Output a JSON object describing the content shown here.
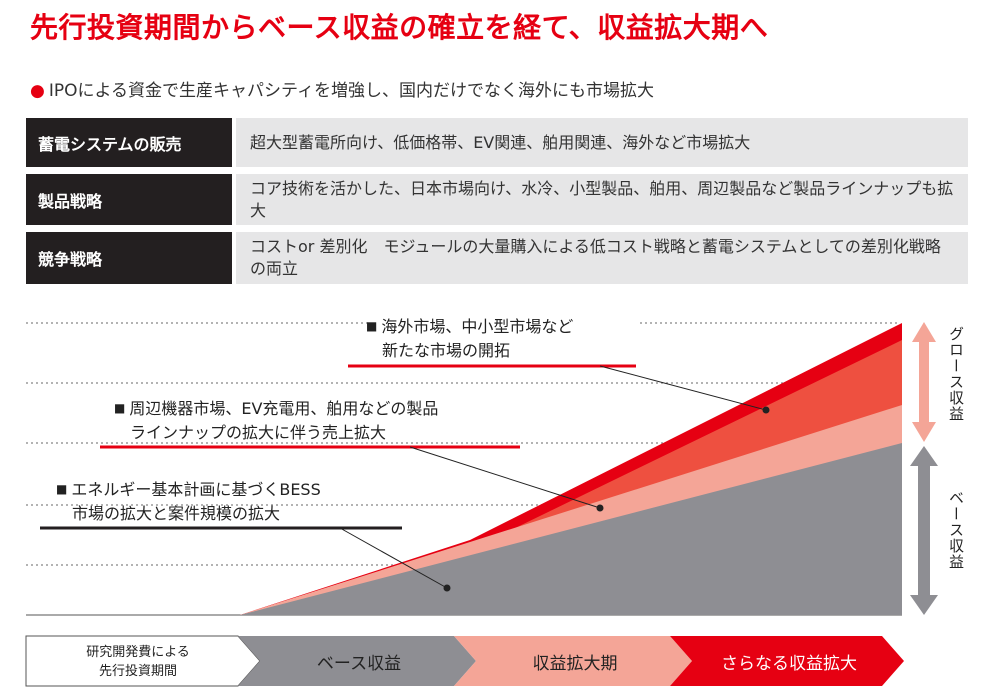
{
  "title": "先行投資期間からベース収益の確立を経て、収益拡大期へ",
  "bullet": "IPOによる資金で生産キャパシティを増強し、国内だけでなく海外にも市場拡大",
  "table": {
    "rows": [
      {
        "label": "蓄電システムの販売",
        "content": "超大型蓄電所向け、低価格帯、EV関連、舶用関連、海外など市場拡大"
      },
      {
        "label": "製品戦略",
        "content": "コア技術を活かした、日本市場向け、水冷、小型製品、舶用、周辺製品など製品ラインナップも拡大"
      },
      {
        "label": "競争戦略",
        "content": "コストor 差別化　モジュールの大量購入による低コスト戦略と蓄電システムとしての差別化戦略の両立"
      }
    ]
  },
  "annotations": [
    {
      "line1": "海外市場、中小型市場など",
      "line2": "新たな市場の開拓"
    },
    {
      "line1": "周辺機器市場、EV充電用、舶用などの製品",
      "line2": "ラインナップの拡大に伴う売上拡大"
    },
    {
      "line1": "エネルギー基本計画に基づくBESS",
      "line2": "市場の拡大と案件規模の拡大"
    }
  ],
  "side_labels": {
    "growth": "グロース収益",
    "base": "ベース収益"
  },
  "phases": [
    "研究開発費による\n先行投資期間",
    "ベース収益",
    "収益拡大期",
    "さらなる収益拡大"
  ],
  "colors": {
    "accent": "#e60012",
    "dark": "#231f20",
    "gray_area": "#8e8e93",
    "salmon": "#f4a597",
    "mid_red": "#ee5040",
    "light_gray": "#e6e6e7"
  }
}
